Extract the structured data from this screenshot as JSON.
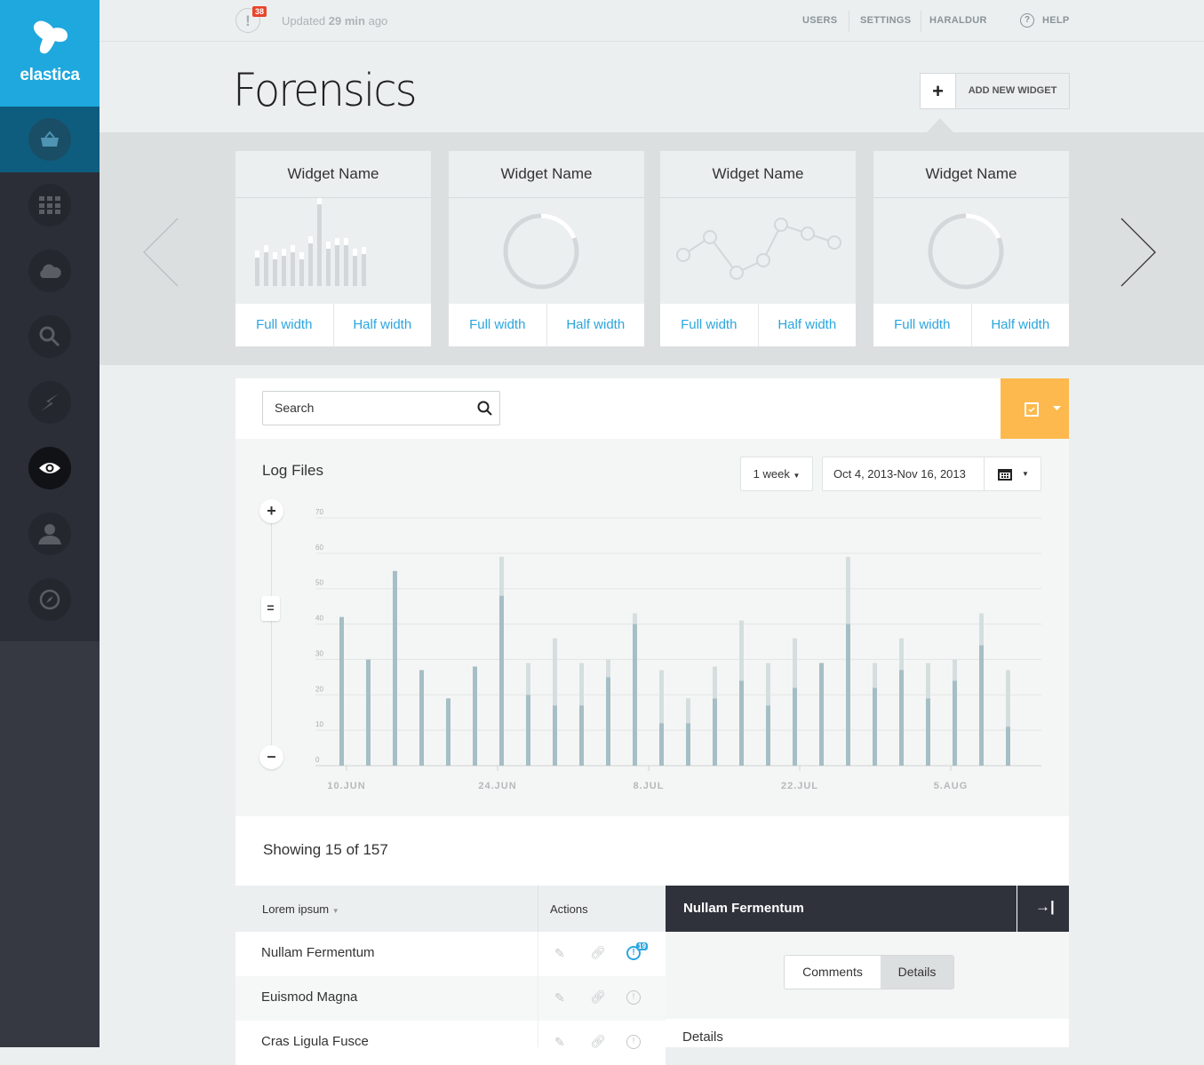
{
  "brand": {
    "name": "elastica",
    "color": "#1ea8de"
  },
  "sidebar": {
    "items": [
      {
        "icon": "basket-icon",
        "state": "selected"
      },
      {
        "icon": "grid-icon"
      },
      {
        "icon": "cloud-icon"
      },
      {
        "icon": "search-icon"
      },
      {
        "icon": "lightning-icon"
      },
      {
        "icon": "eye-icon",
        "state": "active"
      },
      {
        "icon": "user-icon"
      },
      {
        "icon": "compass-icon"
      }
    ]
  },
  "topbar": {
    "alert_count": "38",
    "updated_prefix": "Updated",
    "updated_value": "29 min",
    "updated_suffix": "ago",
    "nav": [
      "USERS",
      "SETTINGS",
      "HARALDUR"
    ],
    "help": "HELP"
  },
  "header": {
    "title": "Forensics",
    "add_widget": "ADD NEW WIDGET"
  },
  "widgets": [
    {
      "title": "Widget Name",
      "type": "bars",
      "full": "Full width",
      "half": "Half width"
    },
    {
      "title": "Widget Name",
      "type": "donut",
      "full": "Full width",
      "half": "Half width"
    },
    {
      "title": "Widget Name",
      "type": "line",
      "full": "Full width",
      "half": "Half width"
    },
    {
      "title": "Widget Name",
      "type": "donut",
      "full": "Full width",
      "half": "Half width"
    }
  ],
  "search": {
    "placeholder": "Search"
  },
  "accent": "#fdb94e",
  "logfiles": {
    "title": "Log Files",
    "range": "1 week",
    "dates": "Oct 4, 2013-Nov 16, 2013"
  },
  "chart_data": {
    "type": "bar",
    "stacked": true,
    "ylim": [
      0,
      70
    ],
    "yticks": [
      0,
      10,
      20,
      30,
      40,
      50,
      60,
      70
    ],
    "xticks": [
      "10.JUN",
      "24.JUN",
      "8.JUL",
      "22.JUL",
      "5.AUG"
    ],
    "grid": true,
    "series": [
      {
        "values": [
          42,
          30,
          55,
          27,
          19,
          28,
          48,
          20,
          17,
          17,
          25,
          40,
          12,
          12,
          19,
          24,
          17,
          22,
          29,
          40,
          22,
          27,
          19,
          24,
          34,
          11
        ],
        "color": "#a6bec5"
      },
      {
        "values": [
          0,
          0,
          0,
          0,
          0,
          0,
          11,
          9,
          19,
          12,
          5,
          3,
          15,
          7,
          9,
          17,
          12,
          14,
          0,
          19,
          7,
          9,
          10,
          6,
          9,
          16
        ],
        "color": "#d5dedf"
      }
    ]
  },
  "list": {
    "showing": "Showing 15 of 157",
    "col1": "Lorem ipsum",
    "col2": "Actions",
    "rows": [
      {
        "name": "Nullam Fermentum",
        "badge": "19"
      },
      {
        "name": "Euismod Magna"
      },
      {
        "name": "Cras Ligula Fusce"
      }
    ]
  },
  "detail": {
    "title": "Nullam Fermentum",
    "tabs": [
      "Comments",
      "Details"
    ],
    "section": "Details"
  }
}
